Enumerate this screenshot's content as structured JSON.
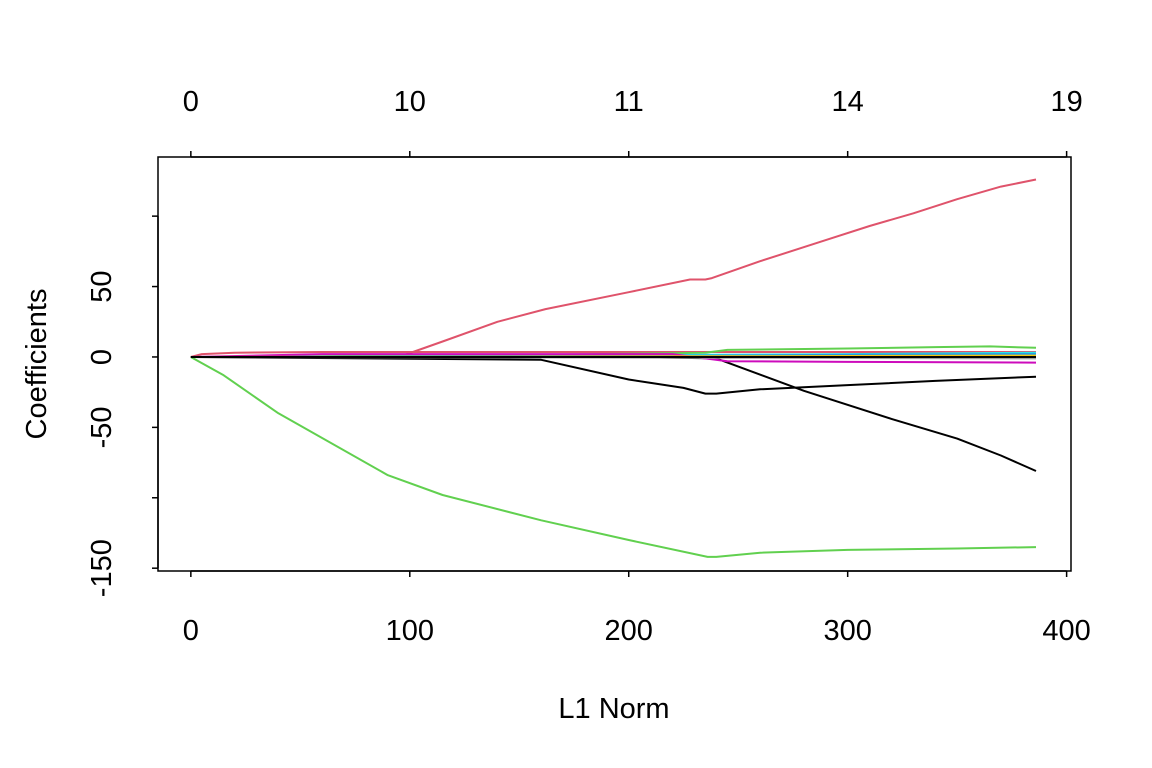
{
  "chart_data": {
    "type": "line",
    "title": "",
    "xlabel": "L1 Norm",
    "ylabel": "Coefficients",
    "xlim": [
      -15,
      402
    ],
    "ylim": [
      -152,
      142
    ],
    "x_ticks": [
      {
        "value": 0,
        "label": "0"
      },
      {
        "value": 100,
        "label": "100"
      },
      {
        "value": 200,
        "label": "200"
      },
      {
        "value": 300,
        "label": "300"
      },
      {
        "value": 400,
        "label": "400"
      }
    ],
    "y_ticks": [
      {
        "value": -150,
        "label": "-150"
      },
      {
        "value": -100,
        "label": ""
      },
      {
        "value": -50,
        "label": "-50"
      },
      {
        "value": 0,
        "label": "0"
      },
      {
        "value": 50,
        "label": "50"
      },
      {
        "value": 100,
        "label": ""
      }
    ],
    "top_axis": [
      {
        "value": 0,
        "label": "0"
      },
      {
        "value": 100,
        "label": "10"
      },
      {
        "value": 200,
        "label": "11"
      },
      {
        "value": 300,
        "label": "14"
      },
      {
        "value": 400,
        "label": "19"
      }
    ],
    "grid": false,
    "series": [
      {
        "color": "#DF536B",
        "points": [
          [
            0,
            0
          ],
          [
            95,
            0
          ],
          [
            115,
            11
          ],
          [
            140,
            25
          ],
          [
            162,
            34
          ],
          [
            200,
            46
          ],
          [
            228,
            55
          ],
          [
            235,
            55
          ],
          [
            238,
            56
          ],
          [
            260,
            68
          ],
          [
            290,
            83
          ],
          [
            310,
            93
          ],
          [
            330,
            102
          ],
          [
            350,
            112
          ],
          [
            370,
            121
          ],
          [
            386,
            126
          ]
        ]
      },
      {
        "color": "#DF536B",
        "points": [
          [
            0,
            0
          ],
          [
            5,
            2
          ],
          [
            20,
            3
          ],
          [
            60,
            3.5
          ],
          [
            120,
            3.5
          ],
          [
            240,
            3.5
          ],
          [
            386,
            3.5
          ]
        ]
      },
      {
        "color": "#61D04F",
        "points": [
          [
            0,
            0
          ],
          [
            15,
            -13
          ],
          [
            40,
            -40
          ],
          [
            90,
            -84
          ],
          [
            115,
            -98
          ],
          [
            160,
            -116
          ],
          [
            200,
            -130
          ],
          [
            236,
            -142
          ],
          [
            240,
            -142
          ],
          [
            260,
            -139
          ],
          [
            300,
            -137
          ],
          [
            350,
            -136
          ],
          [
            386,
            -135
          ]
        ]
      },
      {
        "color": "#61D04F",
        "points": [
          [
            0,
            0
          ],
          [
            160,
            1.5
          ],
          [
            235,
            3
          ],
          [
            245,
            5
          ],
          [
            300,
            6
          ],
          [
            340,
            7
          ],
          [
            365,
            7.5
          ],
          [
            386,
            6.5
          ]
        ]
      },
      {
        "color": "#000000",
        "points": [
          [
            0,
            0
          ],
          [
            160,
            -2
          ],
          [
            200,
            -16
          ],
          [
            225,
            -22
          ],
          [
            235,
            -26
          ],
          [
            240,
            -26
          ],
          [
            260,
            -23
          ],
          [
            300,
            -20
          ],
          [
            340,
            -17
          ],
          [
            386,
            -14
          ]
        ]
      },
      {
        "color": "#000000",
        "points": [
          [
            0,
            0
          ],
          [
            200,
            0
          ],
          [
            240,
            -1
          ],
          [
            280,
            -24
          ],
          [
            320,
            -44
          ],
          [
            350,
            -58
          ],
          [
            370,
            -70
          ],
          [
            386,
            -81
          ]
        ]
      },
      {
        "color": "#28E2E5",
        "points": [
          [
            0,
            0
          ],
          [
            240,
            1.5
          ],
          [
            300,
            2
          ],
          [
            386,
            3
          ]
        ]
      },
      {
        "color": "#2297E6",
        "points": [
          [
            0,
            0
          ],
          [
            240,
            1
          ],
          [
            300,
            1.5
          ],
          [
            386,
            2
          ]
        ]
      },
      {
        "color": "#CD0BBC",
        "points": [
          [
            0,
            0
          ],
          [
            60,
            2
          ],
          [
            220,
            2
          ],
          [
            245,
            -3
          ],
          [
            300,
            -3.5
          ],
          [
            386,
            -4
          ]
        ]
      },
      {
        "color": "#F5C710",
        "points": [
          [
            0,
            0
          ],
          [
            240,
            0.5
          ],
          [
            386,
            1
          ]
        ]
      },
      {
        "color": "#9E9E9E",
        "points": [
          [
            0,
            0
          ],
          [
            240,
            -0.5
          ],
          [
            386,
            -1
          ]
        ]
      },
      {
        "color": "#000000",
        "points": [
          [
            0,
            0
          ],
          [
            386,
            0
          ]
        ]
      }
    ]
  }
}
